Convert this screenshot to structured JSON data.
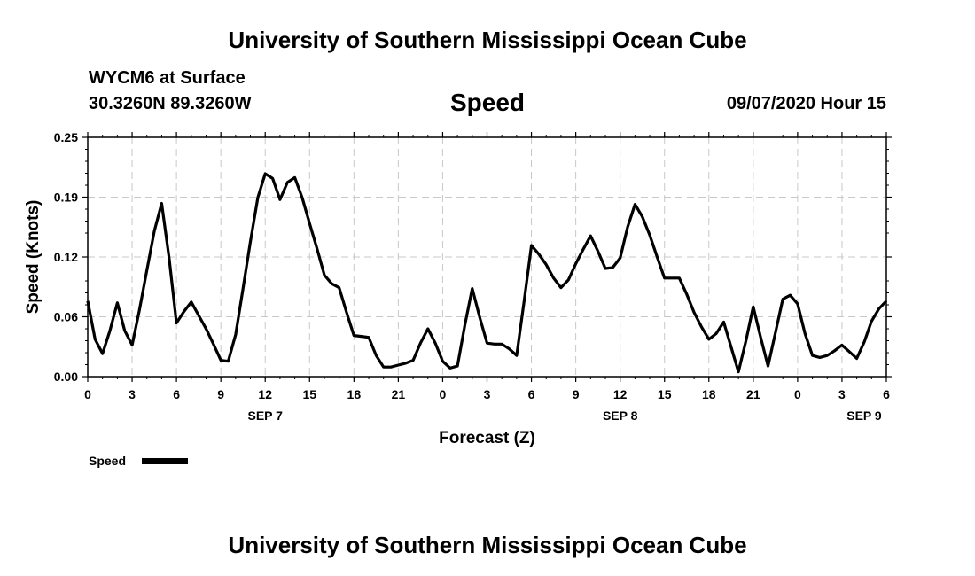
{
  "header": {
    "title": "University of Southern Mississippi Ocean Cube",
    "station": "WYCM6 at Surface",
    "coords": "30.3260N 89.3260W",
    "variable": "Speed",
    "datetime": "09/07/2020 Hour 15"
  },
  "footer": {
    "title": "University of Southern Mississippi Ocean Cube"
  },
  "legend": {
    "label": "Speed"
  },
  "chart_data": {
    "type": "line",
    "title": "Speed",
    "xlabel": "Forecast (Z)",
    "ylabel": "Speed (Knots)",
    "x_unit": "hours from 2020-09-07 00Z",
    "xlim": [
      0,
      54
    ],
    "ylim": [
      0,
      0.25
    ],
    "y_ticks": [
      "0.00",
      "0.06",
      "0.12",
      "0.19",
      "0.25"
    ],
    "x_tick_labels": [
      "0",
      "3",
      "6",
      "9",
      "12",
      "15",
      "18",
      "21",
      "0",
      "3",
      "6",
      "9",
      "12",
      "15",
      "18",
      "21",
      "0",
      "3",
      "6"
    ],
    "date_labels": [
      {
        "label": "SEP 7",
        "at": 12
      },
      {
        "label": "SEP 8",
        "at": 36
      },
      {
        "label": "SEP 9",
        "at": 52.5
      }
    ],
    "grid": true,
    "legend_position": "bottom-left",
    "color": "#000000",
    "series": [
      {
        "name": "Speed",
        "x": [
          0,
          0.5,
          1,
          1.5,
          2,
          2.5,
          3,
          3.5,
          4,
          4.5,
          5,
          5.5,
          6,
          6.5,
          7,
          7.5,
          8,
          8.5,
          9,
          9.5,
          10,
          10.5,
          11,
          11.5,
          12,
          12.5,
          13,
          13.5,
          14,
          14.5,
          15,
          15.5,
          16,
          16.5,
          17,
          17.5,
          18,
          18.5,
          19,
          19.5,
          20,
          20.5,
          21,
          21.5,
          22,
          22.5,
          23,
          23.5,
          24,
          24.5,
          25,
          25.5,
          26,
          26.5,
          27,
          27.5,
          28,
          28.5,
          29,
          29.5,
          30,
          30.5,
          31,
          31.5,
          32,
          32.5,
          33,
          33.5,
          34,
          34.5,
          35,
          35.5,
          36,
          36.5,
          37,
          37.5,
          38,
          38.5,
          39,
          39.5,
          40,
          40.5,
          41,
          41.5,
          42,
          42.5,
          43,
          43.5,
          44,
          44.5,
          45,
          45.5,
          46,
          46.5,
          47,
          47.5,
          48,
          48.5,
          49,
          49.5,
          50,
          50.5,
          51,
          51.5,
          52,
          52.5,
          53,
          53.5,
          54
        ],
        "values": [
          0.079,
          0.039,
          0.024,
          0.048,
          0.077,
          0.048,
          0.033,
          0.07,
          0.111,
          0.152,
          0.181,
          0.124,
          0.056,
          0.068,
          0.078,
          0.064,
          0.05,
          0.034,
          0.017,
          0.016,
          0.044,
          0.092,
          0.141,
          0.187,
          0.212,
          0.207,
          0.185,
          0.203,
          0.208,
          0.187,
          0.16,
          0.134,
          0.106,
          0.097,
          0.093,
          0.067,
          0.043,
          0.042,
          0.041,
          0.022,
          0.01,
          0.01,
          0.012,
          0.014,
          0.017,
          0.035,
          0.05,
          0.035,
          0.016,
          0.009,
          0.011,
          0.054,
          0.092,
          0.062,
          0.035,
          0.034,
          0.034,
          0.029,
          0.022,
          0.078,
          0.137,
          0.128,
          0.117,
          0.103,
          0.093,
          0.101,
          0.118,
          0.133,
          0.147,
          0.131,
          0.113,
          0.114,
          0.124,
          0.156,
          0.18,
          0.167,
          0.148,
          0.125,
          0.103,
          0.103,
          0.103,
          0.086,
          0.067,
          0.052,
          0.039,
          0.045,
          0.057,
          0.031,
          0.005,
          0.037,
          0.073,
          0.041,
          0.011,
          0.046,
          0.081,
          0.085,
          0.076,
          0.045,
          0.022,
          0.02,
          0.022,
          0.027,
          0.033,
          0.026,
          0.019,
          0.036,
          0.058,
          0.071,
          0.079
        ]
      }
    ]
  }
}
